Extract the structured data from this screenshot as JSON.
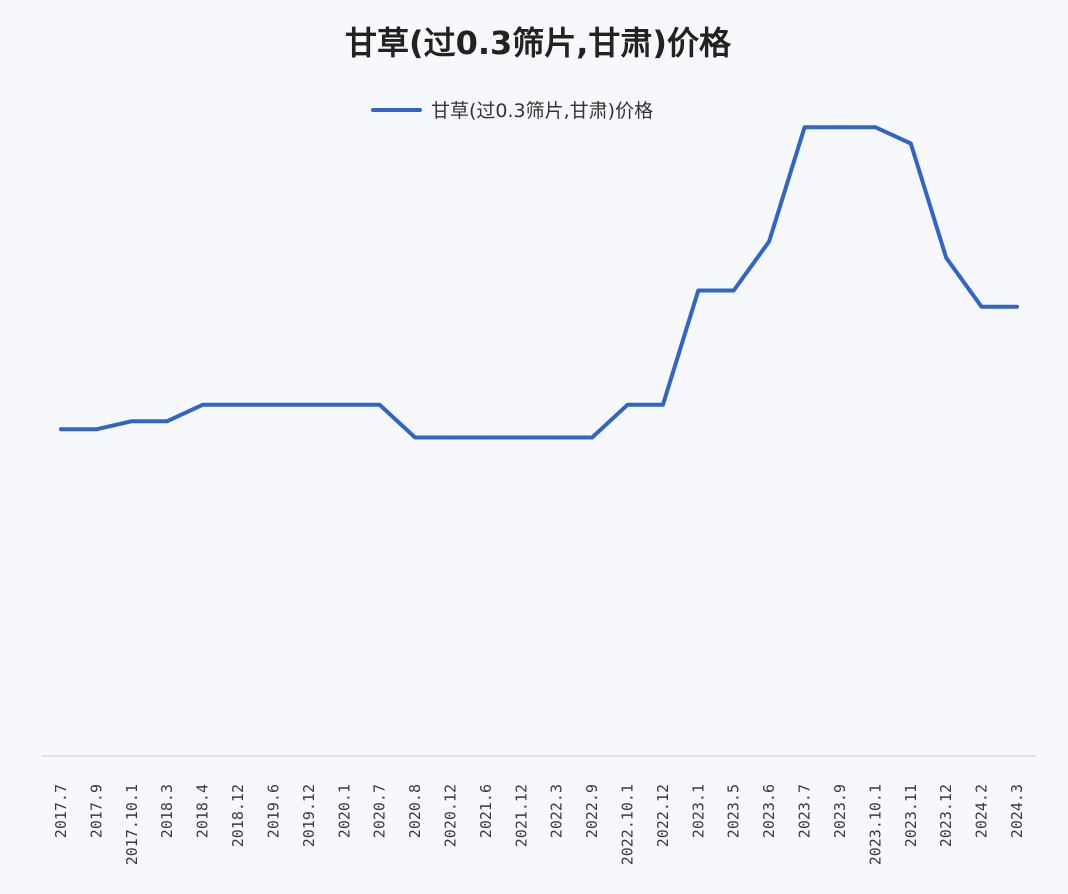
{
  "chart_data": {
    "type": "line",
    "title": "甘草(过0.3筛片,甘肃)价格",
    "xlabel": "",
    "ylabel": "",
    "legend_position": "top-center",
    "grid": false,
    "y_axis_labels_shown": false,
    "categories": [
      "2017.7",
      "2017.9",
      "2017.10.1",
      "2018.3",
      "2018.4",
      "2018.12",
      "2019.6",
      "2019.12",
      "2020.1",
      "2020.7",
      "2020.8",
      "2020.12",
      "2021.6",
      "2021.12",
      "2022.3",
      "2022.9",
      "2022.10.1",
      "2022.12",
      "2023.1",
      "2023.5",
      "2023.6",
      "2023.7",
      "2023.9",
      "2023.10.1",
      "2023.11",
      "2023.12",
      "2024.2",
      "2024.3"
    ],
    "series": [
      {
        "name": "甘草(过0.3筛片,甘肃)价格",
        "color": "#2f66c8",
        "values": [
          40.0,
          40.0,
          41.0,
          41.0,
          43.0,
          43.0,
          43.0,
          43.0,
          43.0,
          43.0,
          39.0,
          39.0,
          39.0,
          39.0,
          39.0,
          39.0,
          43.0,
          43.0,
          57.0,
          57.0,
          63.0,
          77.0,
          77.0,
          77.0,
          75.0,
          61.0,
          55.0,
          55.0
        ]
      }
    ],
    "ylim": [
      0,
      84
    ]
  }
}
